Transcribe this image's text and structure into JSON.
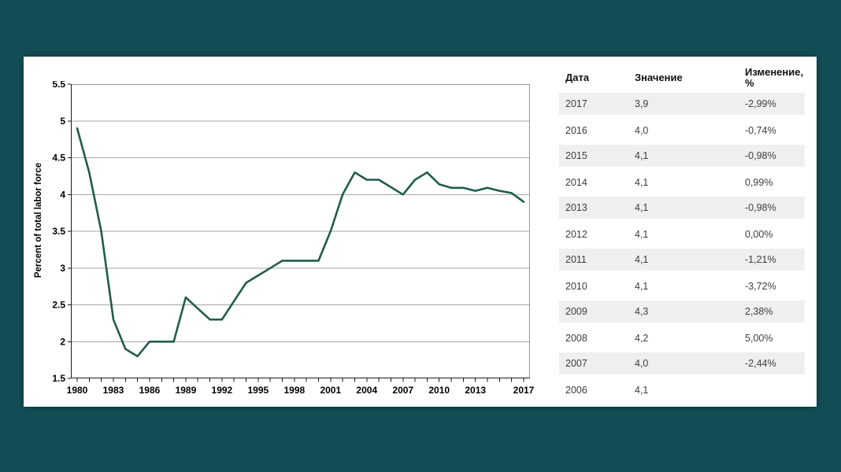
{
  "page": {
    "background": "#134e57",
    "card_background": "#ffffff"
  },
  "chart": {
    "y_axis_title": "Percent of total labor force",
    "y_tick_labels": [
      "5.5",
      "5",
      "4.5",
      "4",
      "3.5",
      "3",
      "2.5",
      "2",
      "1.5"
    ],
    "x_tick_labels": [
      "1980",
      "1983",
      "1986",
      "1989",
      "1992",
      "1995",
      "1998",
      "2001",
      "2004",
      "2007",
      "2010",
      "2013",
      "2017"
    ],
    "colors": {
      "line": "#215c4b",
      "grid": "#a6a6a6",
      "frame": "#999999",
      "axis": "#1a1a1a"
    }
  },
  "chart_data": {
    "type": "line",
    "title": "",
    "xlabel": "",
    "ylabel": "Percent of total labor force",
    "x": [
      1980,
      1981,
      1982,
      1983,
      1984,
      1985,
      1986,
      1987,
      1988,
      1989,
      1990,
      1991,
      1992,
      1993,
      1994,
      1995,
      1996,
      1997,
      1998,
      1999,
      2000,
      2001,
      2002,
      2003,
      2004,
      2005,
      2006,
      2007,
      2008,
      2009,
      2010,
      2011,
      2012,
      2013,
      2014,
      2015,
      2016,
      2017
    ],
    "series": [
      {
        "name": "Percent of total labor force",
        "values": [
          4.9,
          4.3,
          3.5,
          2.3,
          1.9,
          1.8,
          2.0,
          2.0,
          2.0,
          2.6,
          2.45,
          2.3,
          2.3,
          2.55,
          2.8,
          2.9,
          3.0,
          3.1,
          3.1,
          3.1,
          3.1,
          3.5,
          4.0,
          4.3,
          4.2,
          4.2,
          4.1,
          4.0,
          4.2,
          4.3,
          4.14,
          4.09,
          4.09,
          4.05,
          4.09,
          4.05,
          4.02,
          3.9
        ]
      }
    ],
    "ylim": [
      1.5,
      5.5
    ],
    "xlim": [
      1980,
      2017
    ],
    "yticks": [
      5.5,
      5.0,
      4.5,
      4.0,
      3.5,
      3.0,
      2.5,
      2.0,
      1.5
    ],
    "xticks": [
      1980,
      1983,
      1986,
      1989,
      1992,
      1995,
      1998,
      2001,
      2004,
      2007,
      2010,
      2013,
      2017
    ],
    "grid": "horizontal-only",
    "legend": "none"
  },
  "table": {
    "headers": [
      "Дата",
      "Значение",
      "Изменение, %"
    ],
    "rows": [
      [
        "2017",
        "3,9",
        "-2,99%"
      ],
      [
        "2016",
        "4,0",
        "-0,74%"
      ],
      [
        "2015",
        "4,1",
        "-0,98%"
      ],
      [
        "2014",
        "4,1",
        "0,99%"
      ],
      [
        "2013",
        "4,1",
        "-0,98%"
      ],
      [
        "2012",
        "4,1",
        "0,00%"
      ],
      [
        "2011",
        "4,1",
        "-1,21%"
      ],
      [
        "2010",
        "4,1",
        "-3,72%"
      ],
      [
        "2009",
        "4,3",
        "2,38%"
      ],
      [
        "2008",
        "4,2",
        "5,00%"
      ],
      [
        "2007",
        "4,0",
        "-2,44%"
      ],
      [
        "2006",
        "4,1",
        ""
      ]
    ]
  }
}
